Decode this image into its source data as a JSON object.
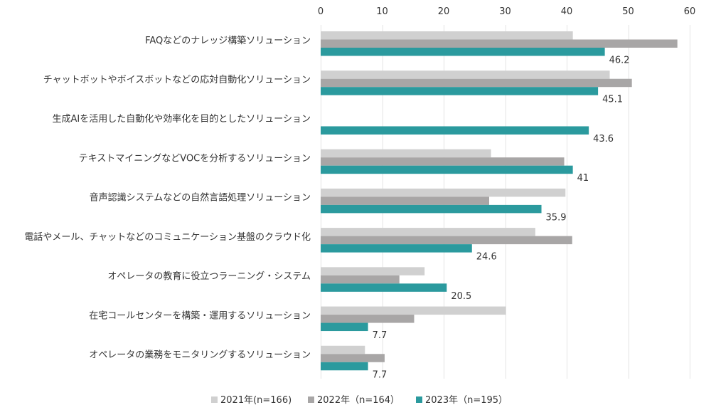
{
  "chart_data": {
    "type": "bar",
    "orientation": "horizontal",
    "categories": [
      "FAQなどのナレッジ構築ソリューション",
      "チャットボットやボイスボットなどの応対自動化ソリューション",
      "生成AIを活用した自動化や効率化を目的としたソリューション",
      "テキストマイニングなどVOCを分析するソリューション",
      "音声認識システムなどの自然言語処理ソリューション",
      "電話やメール、チャットなどのコミュニケーション基盤のクラウド化",
      "オペレータの教育に役立つラーニング・システム",
      "在宅コールセンターを構築・運用するソリューション",
      "オペレータの業務をモニタリングするソリューション"
    ],
    "series": [
      {
        "name": "2021年(n=166)",
        "color": "#d0d0d0",
        "values": [
          41.0,
          47.0,
          null,
          27.7,
          39.8,
          34.9,
          16.9,
          30.1,
          7.2
        ]
      },
      {
        "name": "2022年（n=164）",
        "color": "#a8a6a6",
        "values": [
          58.0,
          50.6,
          null,
          39.6,
          27.4,
          40.9,
          12.8,
          15.2,
          10.4
        ]
      },
      {
        "name": "2023年（n=195）",
        "color": "#2b9a9e",
        "values": [
          46.2,
          45.1,
          43.6,
          41,
          35.9,
          24.6,
          20.5,
          7.7,
          7.7
        ]
      }
    ],
    "data_labels": [
      "46.2",
      "45.1",
      "43.6",
      "41",
      "35.9",
      "24.6",
      "20.5",
      "7.7",
      "7.7"
    ],
    "xlim": [
      0,
      60
    ],
    "xticks": [
      0,
      10,
      20,
      30,
      40,
      50,
      60
    ],
    "xtick_labels": [
      "0",
      "10",
      "20",
      "30",
      "40",
      "50",
      "60"
    ],
    "grid": true,
    "legend_position": "bottom",
    "title": "",
    "xlabel": "",
    "ylabel": ""
  }
}
